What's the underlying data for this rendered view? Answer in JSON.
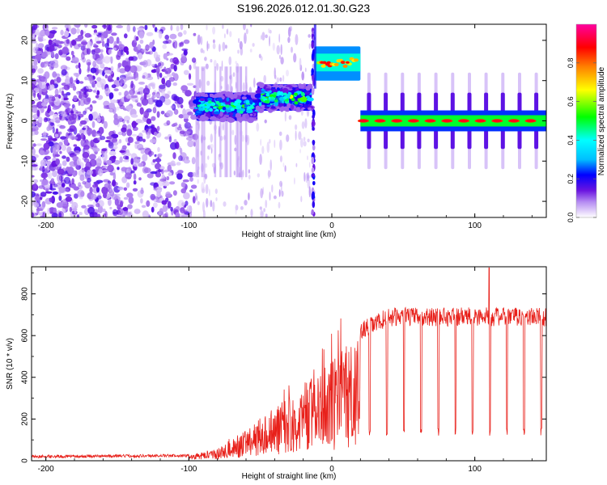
{
  "title": "S196.2026.012.01.30.G23",
  "chart_data": [
    {
      "type": "heatmap",
      "xlabel": "Height of straight line (km)",
      "ylabel": "Frequency (Hz)",
      "xlim": [
        -210,
        150
      ],
      "ylim": [
        -24,
        24
      ],
      "xticks": [
        -200,
        -100,
        0,
        100
      ],
      "yticks": [
        -20,
        -10,
        0,
        10,
        20
      ],
      "colorbar": {
        "label": "Normalized spectral amplitude",
        "ticks": [
          0.0,
          0.2,
          0.4,
          0.6,
          0.8
        ],
        "range": [
          0,
          1
        ],
        "colors": [
          "#ffffff",
          "#b58cf2",
          "#6a14e0",
          "#0000ff",
          "#00bfff",
          "#00ffff",
          "#00ff00",
          "#ffff00",
          "#ff8000",
          "#ff0000",
          "#ff00a0"
        ]
      },
      "segments": [
        {
          "x_start": -210,
          "x_end": -95,
          "freq_center": 0,
          "peak_amplitude": 0.2,
          "pattern": "broadband noise"
        },
        {
          "x_start": -95,
          "x_end": -52,
          "freq_center": 3.5,
          "peak_amplitude": 0.45
        },
        {
          "x_start": -52,
          "x_end": -14,
          "freq_center": 5.8,
          "peak_amplitude": 0.55
        },
        {
          "x_start": -14,
          "x_end": -10,
          "freq_center": 0,
          "peak_amplitude": 0.2,
          "pattern": "vertical streak"
        },
        {
          "x_start": -12,
          "x_end": 20,
          "freq_center": 14.5,
          "peak_amplitude": 0.95
        },
        {
          "x_start": 20,
          "x_end": 150,
          "freq_center": 0,
          "peak_amplitude": 1.0,
          "pattern": "periodic pulses every ~12 km"
        }
      ]
    },
    {
      "type": "line",
      "xlabel": "Height of straight line (km)",
      "ylabel": "SNR (10 * v/v)",
      "xlim": [
        -210,
        150
      ],
      "ylim": [
        0,
        930
      ],
      "xticks": [
        -200,
        -100,
        0,
        100
      ],
      "yticks": [
        0,
        200,
        400,
        600,
        800
      ],
      "color": "#e8201a",
      "series_description": "SNR stays near 20 from -210 to -95 km, ramps up to ~650 by 20 km, then plateaus around 690 with periodic dips to ~120 every ~12 km; spike to ~925 near 110 km.",
      "key_points": [
        {
          "x": -210,
          "y": 20
        },
        {
          "x": -100,
          "y": 25
        },
        {
          "x": -80,
          "y": 60
        },
        {
          "x": -60,
          "y": 150
        },
        {
          "x": -40,
          "y": 260
        },
        {
          "x": -20,
          "y": 370
        },
        {
          "x": 0,
          "y": 480
        },
        {
          "x": 20,
          "y": 620
        },
        {
          "x": 40,
          "y": 690
        },
        {
          "x": 110,
          "y": 925
        },
        {
          "x": 150,
          "y": 700
        }
      ],
      "dip_min": 120,
      "dip_period_km": 12,
      "plateau_level": 690
    }
  ]
}
